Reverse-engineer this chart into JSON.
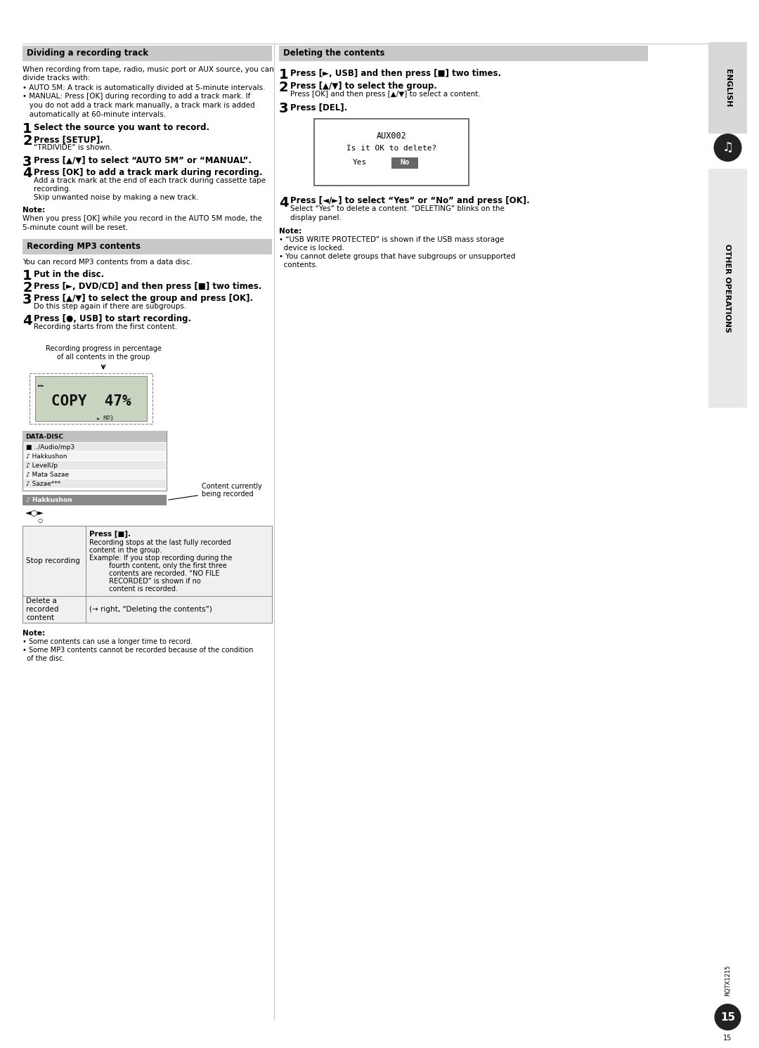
{
  "page_bg": "#ffffff",
  "header_bg": "#c8c8c8",
  "sidebar_bg": "#e0e0e0",
  "section1_title": "Dividing a recording track",
  "section1_intro_lines": [
    "When recording from tape, radio, music port or AUX source, you can",
    "divide tracks with:"
  ],
  "section1_bullets": [
    "• AUTO 5M: A track is automatically divided at 5-minute intervals.",
    "• MANUAL: Press [OK] during recording to add a track mark. If",
    "   you do not add a track mark manually, a track mark is added",
    "   automatically at 60-minute intervals."
  ],
  "section1_steps": [
    {
      "num": "1",
      "bold": "Select the source you want to record.",
      "rest": []
    },
    {
      "num": "2",
      "bold": "Press [SETUP].",
      "rest": [
        "“TRDIVIDE” is shown."
      ]
    },
    {
      "num": "3",
      "bold": "Press [▲/▼] to select “AUTO 5M” or “MANUAL”.",
      "rest": []
    },
    {
      "num": "4",
      "bold": "Press [OK] to add a track mark during recording.",
      "rest": [
        "Add a track mark at the end of each track during cassette tape",
        "recording.",
        "Skip unwanted noise by making a new track."
      ]
    }
  ],
  "section1_note_lines": [
    "Note:",
    "When you press [OK] while you record in the AUTO 5M mode, the",
    "5-minute count will be reset."
  ],
  "section2_title": "Recording MP3 contents",
  "section2_intro": "You can record MP3 contents from a data disc.",
  "section2_steps": [
    {
      "num": "1",
      "bold": "Put in the disc.",
      "rest": []
    },
    {
      "num": "2",
      "bold": "Press [►, DVD/CD] and then press [■] two times.",
      "rest": []
    },
    {
      "num": "3",
      "bold": "Press [▲/▼] to select the group and press [OK].",
      "rest": [
        "Do this step again if there are subgroups."
      ]
    },
    {
      "num": "4",
      "bold": "Press [●, USB] to start recording.",
      "rest": [
        "Recording starts from the first content."
      ]
    }
  ],
  "section3_title": "Deleting the contents",
  "section3_steps": [
    {
      "num": "1",
      "bold": "Press [►, USB] and then press [■] two times.",
      "rest": []
    },
    {
      "num": "2",
      "bold": "Press [▲/▼] to select the group.",
      "rest": [
        "Press [OK] and then press [▲/▼] to select a content."
      ]
    },
    {
      "num": "3",
      "bold": "Press [DEL].",
      "rest": []
    },
    {
      "num": "4",
      "bold": "Press [◄/►] to select “Yes” or “No” and press [OK].",
      "rest": [
        "Select “Yes” to delete a content. “DELETING” blinks on the",
        "display panel."
      ]
    }
  ],
  "section3_note_lines": [
    "Note:",
    "• “USB WRITE PROTECTED” is shown if the USB mass storage",
    "  device is locked.",
    "• You cannot delete groups that have subgroups or unsupported",
    "  contents."
  ],
  "disc_list_items": [
    {
      "icon": "■",
      "text": "../Audio/mp3"
    },
    {
      "icon": "♪",
      "text": "Hakkushon"
    },
    {
      "icon": "♪",
      "text": "LevelUp"
    },
    {
      "icon": "♪",
      "text": "Mata Sazae"
    },
    {
      "icon": "♪",
      "text": "Sazae***"
    }
  ],
  "table_row1_col1": "Stop recording",
  "table_row1_col2_bold": "Press [■].",
  "table_row1_col2_rest": [
    "Recording stops at the last fully recorded",
    "content in the group.",
    "Example: If you stop recording during the",
    "         fourth content, only the first three",
    "         contents are recorded. “NO FILE",
    "         RECORDED” is shown if no",
    "         content is recorded."
  ],
  "table_row2_col1": "Delete a\nrecorded\ncontent",
  "table_row2_col2": "(→0 right, “Deleting the contents”)",
  "bottom_note_lines": [
    "Note:",
    "• Some contents can use a longer time to record.",
    "• Some MP3 contents cannot be recorded because of the condition",
    "  of the disc."
  ],
  "sidebar_english": "ENGLISH",
  "sidebar_other_ops": "OTHER OPERATIONS",
  "page_num": "15",
  "model_code": "RQTX1215"
}
